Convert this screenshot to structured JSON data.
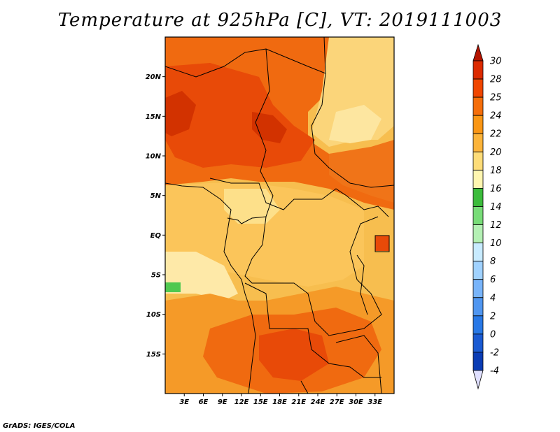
{
  "title": "Temperature at 925hPa [C], VT: 2019111003",
  "credit": "GrADS: IGES/COLA",
  "map": {
    "region": "Central Africa",
    "lon_range": [
      0,
      36
    ],
    "lat_range": [
      -20,
      25
    ],
    "lat_ticks": [
      {
        "label": "20N",
        "value": 20
      },
      {
        "label": "15N",
        "value": 15
      },
      {
        "label": "10N",
        "value": 10
      },
      {
        "label": "5N",
        "value": 5
      },
      {
        "label": "EQ",
        "value": 0
      },
      {
        "label": "5S",
        "value": -5
      },
      {
        "label": "10S",
        "value": -10
      },
      {
        "label": "15S",
        "value": -15
      }
    ],
    "lon_ticks": [
      {
        "label": "3E",
        "value": 3
      },
      {
        "label": "6E",
        "value": 6
      },
      {
        "label": "9E",
        "value": 9
      },
      {
        "label": "12E",
        "value": 12
      },
      {
        "label": "15E",
        "value": 15
      },
      {
        "label": "18E",
        "value": 18
      },
      {
        "label": "21E",
        "value": 21
      },
      {
        "label": "24E",
        "value": 24
      },
      {
        "label": "27E",
        "value": 27
      },
      {
        "label": "30E",
        "value": 30
      },
      {
        "label": "33E",
        "value": 33
      }
    ]
  },
  "colorbar": {
    "levels": [
      "30",
      "28",
      "25",
      "24",
      "22",
      "20",
      "18",
      "16",
      "14",
      "12",
      "10",
      "8",
      "6",
      "4",
      "2",
      "0",
      "-2",
      "-4"
    ],
    "colors": [
      "#dc2a00",
      "#f04600",
      "#f56e0a",
      "#fa9614",
      "#fcb43a",
      "#fddc78",
      "#fff6b0",
      "#3cbc3c",
      "#78dc78",
      "#b4f0b4",
      "#c8ebff",
      "#a0d2ff",
      "#78b4fa",
      "#5096f0",
      "#2878e6",
      "#1a5ad2",
      "#0a3cb4",
      "#0a1e8c"
    ],
    "top_cap": "#b41400",
    "bottom_cap": "#e0e0ff"
  }
}
